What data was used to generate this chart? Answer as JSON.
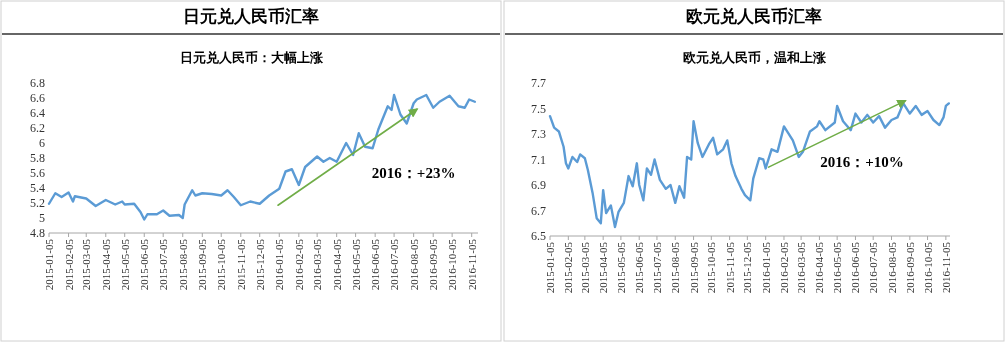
{
  "chart_data": [
    {
      "type": "line",
      "title": "日元兑人民币汇率",
      "subtitle": "日元兑人民币：大幅上涨",
      "annotations": [
        "2016：+23%"
      ],
      "xlim": [
        "2015-01-05",
        "2016-11-15"
      ],
      "ylim": [
        4.8,
        6.8
      ],
      "yticks": [
        4.8,
        5,
        5.2,
        5.4,
        5.6,
        5.8,
        6,
        6.2,
        6.4,
        6.6,
        6.8
      ],
      "xticks": [
        "2015-01-05",
        "2015-02-05",
        "2015-03-05",
        "2015-04-05",
        "2015-05-05",
        "2015-06-05",
        "2015-07-05",
        "2015-08-05",
        "2015-09-05",
        "2015-10-05",
        "2015-11-05",
        "2015-12-05",
        "2016-01-05",
        "2016-02-05",
        "2016-03-05",
        "2016-04-05",
        "2016-05-05",
        "2016-06-05",
        "2016-07-05",
        "2016-08-05",
        "2016-09-05",
        "2016-10-05",
        "2016-11-05"
      ],
      "series": [
        {
          "color": "#5b9bd5",
          "x": [
            "2015-01-05",
            "2015-01-15",
            "2015-01-25",
            "2015-02-05",
            "2015-02-12",
            "2015-02-15",
            "2015-03-05",
            "2015-03-20",
            "2015-04-05",
            "2015-04-20",
            "2015-05-01",
            "2015-05-05",
            "2015-05-20",
            "2015-05-30",
            "2015-06-05",
            "2015-06-10",
            "2015-06-25",
            "2015-07-05",
            "2015-07-15",
            "2015-07-30",
            "2015-08-05",
            "2015-08-08",
            "2015-08-20",
            "2015-08-25",
            "2015-09-05",
            "2015-09-20",
            "2015-10-05",
            "2015-10-15",
            "2015-10-25",
            "2015-11-05",
            "2015-11-20",
            "2015-12-05",
            "2015-12-20",
            "2016-01-05",
            "2016-01-15",
            "2016-01-25",
            "2016-02-05",
            "2016-02-15",
            "2016-03-05",
            "2016-03-15",
            "2016-03-25",
            "2016-04-05",
            "2016-04-20",
            "2016-05-01",
            "2016-05-10",
            "2016-05-20",
            "2016-06-01",
            "2016-06-10",
            "2016-06-25",
            "2016-07-01",
            "2016-07-05",
            "2016-07-15",
            "2016-07-25",
            "2016-08-05",
            "2016-08-10",
            "2016-08-25",
            "2016-09-05",
            "2016-09-15",
            "2016-10-01",
            "2016-10-15",
            "2016-10-25",
            "2016-11-01",
            "2016-11-10"
          ],
          "values": [
            5.19,
            5.33,
            5.28,
            5.34,
            5.22,
            5.29,
            5.26,
            5.16,
            5.24,
            5.18,
            5.22,
            5.18,
            5.19,
            5.08,
            4.98,
            5.05,
            5.05,
            5.1,
            5.03,
            5.04,
            5.0,
            5.18,
            5.37,
            5.3,
            5.33,
            5.32,
            5.3,
            5.37,
            5.28,
            5.17,
            5.22,
            5.19,
            5.3,
            5.39,
            5.62,
            5.65,
            5.44,
            5.68,
            5.82,
            5.75,
            5.8,
            5.75,
            6.0,
            5.84,
            6.13,
            5.95,
            5.93,
            6.18,
            6.49,
            6.44,
            6.64,
            6.38,
            6.26,
            6.53,
            6.58,
            6.64,
            6.47,
            6.55,
            6.63,
            6.49,
            6.47,
            6.58,
            6.55
          ]
        },
        {
          "type": "line",
          "color": "#70ad47",
          "x": [
            "2016-01-03",
            "2016-08-10"
          ],
          "values": [
            5.17,
            6.45
          ]
        }
      ]
    },
    {
      "type": "line",
      "title": "欧元兑人民币汇率",
      "subtitle": "欧元兑人民币，温和上涨",
      "annotations": [
        "2016：+10%"
      ],
      "xlim": [
        "2015-01-05",
        "2016-11-12"
      ],
      "ylim": [
        6.5,
        7.7
      ],
      "yticks": [
        6.5,
        6.7,
        6.9,
        7.1,
        7.3,
        7.5,
        7.7
      ],
      "xticks": [
        "2015-01-05",
        "2015-02-05",
        "2015-03-05",
        "2015-04-05",
        "2015-05-05",
        "2015-06-05",
        "2015-07-05",
        "2015-08-05",
        "2015-09-05",
        "2015-10-05",
        "2015-11-05",
        "2015-12-05",
        "2016-01-05",
        "2016-02-05",
        "2016-03-05",
        "2016-04-05",
        "2016-05-05",
        "2016-06-05",
        "2016-07-05",
        "2016-08-05",
        "2016-09-05",
        "2016-10-05",
        "2016-11-05"
      ],
      "series": [
        {
          "color": "#5b9bd5",
          "x": [
            "2015-01-05",
            "2015-01-12",
            "2015-01-20",
            "2015-01-28",
            "2015-02-01",
            "2015-02-05",
            "2015-02-12",
            "2015-02-20",
            "2015-02-25",
            "2015-03-05",
            "2015-03-10",
            "2015-03-18",
            "2015-03-25",
            "2015-04-01",
            "2015-04-05",
            "2015-04-10",
            "2015-04-18",
            "2015-04-25",
            "2015-05-01",
            "2015-05-10",
            "2015-05-18",
            "2015-05-25",
            "2015-06-01",
            "2015-06-05",
            "2015-06-12",
            "2015-06-18",
            "2015-06-25",
            "2015-07-01",
            "2015-07-10",
            "2015-07-20",
            "2015-07-28",
            "2015-08-05",
            "2015-08-12",
            "2015-08-20",
            "2015-08-25",
            "2015-09-01",
            "2015-09-05",
            "2015-09-12",
            "2015-09-20",
            "2015-10-01",
            "2015-10-08",
            "2015-10-15",
            "2015-10-25",
            "2015-11-01",
            "2015-11-08",
            "2015-11-15",
            "2015-11-25",
            "2015-12-01",
            "2015-12-10",
            "2015-12-15",
            "2015-12-25",
            "2016-01-01",
            "2016-01-05",
            "2016-01-15",
            "2016-01-25",
            "2016-02-05",
            "2016-02-20",
            "2016-03-01",
            "2016-03-08",
            "2016-03-20",
            "2016-04-01",
            "2016-04-05",
            "2016-04-15",
            "2016-05-01",
            "2016-05-05",
            "2016-05-15",
            "2016-05-28",
            "2016-06-05",
            "2016-06-15",
            "2016-06-25",
            "2016-07-05",
            "2016-07-15",
            "2016-07-25",
            "2016-08-05",
            "2016-08-15",
            "2016-08-25",
            "2016-09-05",
            "2016-09-15",
            "2016-09-25",
            "2016-10-05",
            "2016-10-15",
            "2016-10-25",
            "2016-11-01",
            "2016-11-05",
            "2016-11-10"
          ],
          "values": [
            7.44,
            7.35,
            7.32,
            7.2,
            7.07,
            7.03,
            7.12,
            7.08,
            7.14,
            7.11,
            7.02,
            6.84,
            6.64,
            6.6,
            6.86,
            6.68,
            6.74,
            6.57,
            6.69,
            6.76,
            6.97,
            6.89,
            7.07,
            6.9,
            6.78,
            7.03,
            6.98,
            7.1,
            6.94,
            6.87,
            6.9,
            6.76,
            6.89,
            6.8,
            7.12,
            7.1,
            7.4,
            7.23,
            7.12,
            7.22,
            7.27,
            7.14,
            7.18,
            7.25,
            7.07,
            6.97,
            6.87,
            6.82,
            6.78,
            6.95,
            7.11,
            7.1,
            7.03,
            7.18,
            7.16,
            7.36,
            7.25,
            7.12,
            7.16,
            7.32,
            7.36,
            7.4,
            7.33,
            7.39,
            7.52,
            7.4,
            7.33,
            7.46,
            7.39,
            7.45,
            7.39,
            7.44,
            7.35,
            7.41,
            7.43,
            7.54,
            7.46,
            7.52,
            7.45,
            7.48,
            7.41,
            7.37,
            7.43,
            7.52,
            7.54
          ]
        },
        {
          "type": "line",
          "color": "#70ad47",
          "x": [
            "2016-01-10",
            "2016-08-28"
          ],
          "values": [
            7.04,
            7.56
          ]
        }
      ]
    }
  ]
}
